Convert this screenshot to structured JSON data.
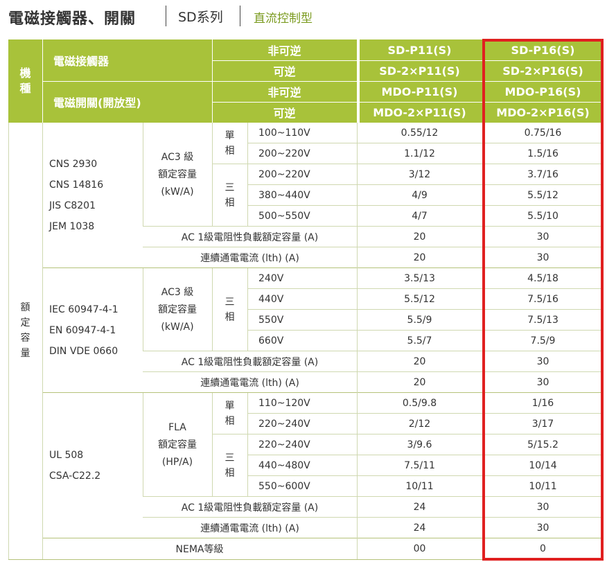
{
  "header": {
    "title": "電磁接觸器、開關",
    "series": "SD系列",
    "subtitle": "直流控制型"
  },
  "table": {
    "head": {
      "machine_type": [
        "機",
        "種"
      ],
      "contactor": "電磁接觸器",
      "switch": "電磁開關(開放型)",
      "non_reversible": "非可逆",
      "reversible": "可逆",
      "col1": [
        "SD-P11(S)",
        "SD-2×P11(S)",
        "MDO-P11(S)",
        "MDO-2×P11(S)"
      ],
      "col2": [
        "SD-P16(S)",
        "SD-2×P16(S)",
        "MDO-P16(S)",
        "MDO-2×P16(S)"
      ]
    },
    "rated_capacity": [
      "額",
      "定",
      "容",
      "量"
    ],
    "sections": [
      {
        "standards": [
          "CNS 2930",
          "CNS 14816",
          "JIS C8201",
          "JEM 1038"
        ],
        "rating_label": [
          "AC3 級",
          "額定容量",
          "(kW/A)"
        ],
        "phase_groups": [
          {
            "label": [
              "單",
              "相"
            ],
            "rows": [
              {
                "v": "100~110V",
                "a": "0.55/12",
                "b": "0.75/16"
              },
              {
                "v": "200~220V",
                "a": "1.1/12",
                "b": "1.5/16"
              }
            ]
          },
          {
            "label": [
              "三",
              "相"
            ],
            "rows": [
              {
                "v": "200~220V",
                "a": "3/12",
                "b": "3.7/16"
              },
              {
                "v": "380~440V",
                "a": "4/9",
                "b": "5.5/12"
              },
              {
                "v": "500~550V",
                "a": "4/7",
                "b": "5.5/10"
              }
            ]
          }
        ],
        "ac1": {
          "label": "AC 1級電阻性負載額定容量 (A)",
          "a": "20",
          "b": "30"
        },
        "lth": {
          "label": "連續通電電流 (lth) (A)",
          "a": "20",
          "b": "30"
        }
      },
      {
        "standards": [
          "IEC 60947-4-1",
          "EN 60947-4-1",
          "DIN VDE 0660"
        ],
        "rating_label": [
          "AC3 級",
          "額定容量",
          "(kW/A)"
        ],
        "phase_groups": [
          {
            "label": [
              "三",
              "相"
            ],
            "rows": [
              {
                "v": "240V",
                "a": "3.5/13",
                "b": "4.5/18"
              },
              {
                "v": "440V",
                "a": "5.5/12",
                "b": "7.5/16"
              },
              {
                "v": "550V",
                "a": "5.5/9",
                "b": "7.5/13"
              },
              {
                "v": "660V",
                "a": "5.5/7",
                "b": "7.5/9"
              }
            ]
          }
        ],
        "ac1": {
          "label": "AC 1級電阻性負載額定容量 (A)",
          "a": "20",
          "b": "30"
        },
        "lth": {
          "label": "連續通電電流 (lth) (A)",
          "a": "20",
          "b": "30"
        }
      },
      {
        "standards": [
          "UL 508",
          "CSA-C22.2"
        ],
        "rating_label": [
          "FLA",
          "額定容量",
          "(HP/A)"
        ],
        "phase_groups": [
          {
            "label": [
              "單",
              "相"
            ],
            "rows": [
              {
                "v": "110~120V",
                "a": "0.5/9.8",
                "b": "1/16"
              },
              {
                "v": "220~240V",
                "a": "2/12",
                "b": "3/17"
              }
            ]
          },
          {
            "label": [
              "三",
              "相"
            ],
            "rows": [
              {
                "v": "220~240V",
                "a": "3/9.6",
                "b": "5/15.2"
              },
              {
                "v": "440~480V",
                "a": "7.5/11",
                "b": "10/14"
              },
              {
                "v": "550~600V",
                "a": "10/11",
                "b": "10/11"
              }
            ]
          }
        ],
        "ac1": {
          "label": "AC 1級電阻性負載額定容量 (A)",
          "a": "24",
          "b": "30"
        },
        "lth": {
          "label": "連續通電電流 (lth) (A)",
          "a": "24",
          "b": "30"
        }
      }
    ],
    "nema": {
      "label": "NEMA等級",
      "a": "00",
      "b": "0"
    }
  },
  "colors": {
    "header_green": "#a8c23a",
    "subtitle_green": "#7a9a1e",
    "highlight": "#e02020"
  }
}
